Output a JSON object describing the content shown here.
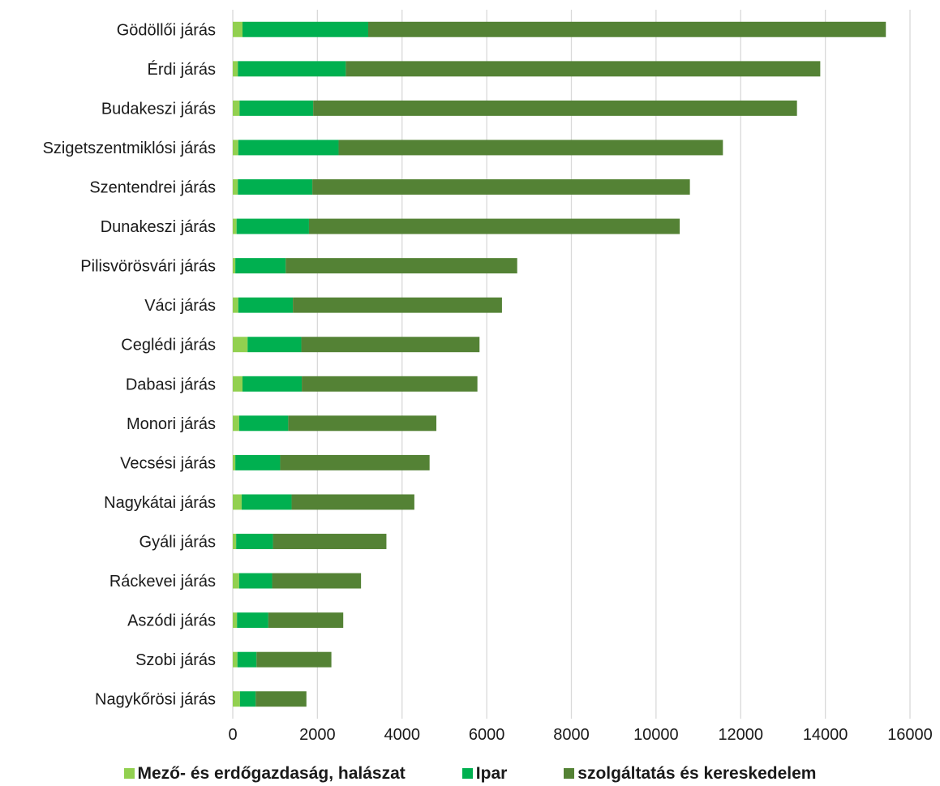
{
  "chart_data": {
    "type": "bar",
    "orientation": "horizontal",
    "stacked": true,
    "categories": [
      "Gödöllői járás",
      "Érdi járás",
      "Budakeszi járás",
      "Szigetszentmiklósi járás",
      "Szentendrei járás",
      "Dunakeszi járás",
      "Pilisvörösvári járás",
      "Váci járás",
      "Ceglédi járás",
      "Dabasi járás",
      "Monori járás",
      "Vecsési járás",
      "Nagykátai járás",
      "Gyáli járás",
      "Ráckevei járás",
      "Aszódi járás",
      "Szobi járás",
      "Nagykőrösi járás"
    ],
    "series": [
      {
        "name": "Mező- és erdőgazdaság, halászat",
        "color": "#92d050",
        "values": [
          230,
          120,
          160,
          130,
          120,
          90,
          60,
          130,
          350,
          230,
          150,
          60,
          210,
          80,
          150,
          100,
          110,
          170
        ]
      },
      {
        "name": "Ipar",
        "color": "#00b050",
        "values": [
          2970,
          2550,
          1740,
          2370,
          1760,
          1710,
          1190,
          1290,
          1270,
          1400,
          1160,
          1060,
          1180,
          870,
          780,
          740,
          450,
          370
        ]
      },
      {
        "name": "szolgáltatás és kereskedelem",
        "color": "#548235",
        "values": [
          12230,
          11210,
          11430,
          9080,
          8920,
          8760,
          5470,
          4940,
          4210,
          4150,
          3500,
          3530,
          2900,
          2680,
          2100,
          1770,
          1770,
          1200
        ]
      }
    ],
    "xlim": [
      0,
      16000
    ],
    "xticks": [
      "0",
      "2000",
      "4000",
      "6000",
      "8000",
      "10000",
      "12000",
      "14000",
      "16000"
    ],
    "grid": "vertical",
    "legend": "bottom",
    "title": "",
    "xlabel": "",
    "ylabel": ""
  }
}
